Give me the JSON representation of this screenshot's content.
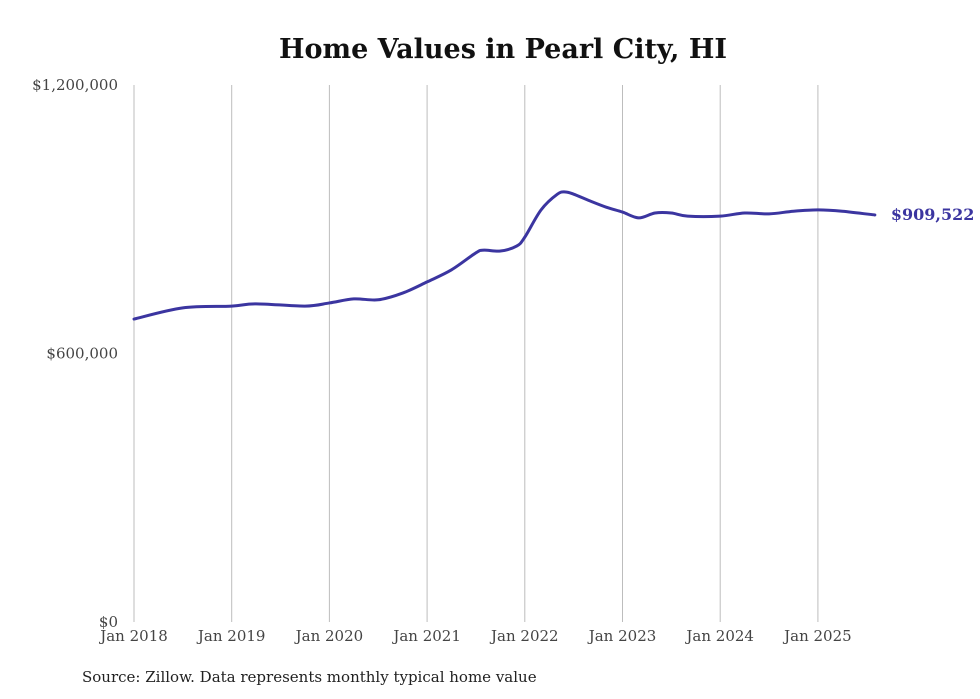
{
  "chart_data": {
    "type": "line",
    "title": "Home Values in Pearl City, HI",
    "xlabel": "",
    "ylabel": "",
    "ylim": [
      0,
      1200000
    ],
    "y_ticks": [
      0,
      600000,
      1200000
    ],
    "y_tick_labels": [
      "$0",
      "$600,000",
      "$1,200,000"
    ],
    "x_ticks": [
      "2018-01",
      "2019-01",
      "2020-01",
      "2021-01",
      "2022-01",
      "2023-01",
      "2024-01",
      "2025-01"
    ],
    "x_tick_labels": [
      "Jan 2018",
      "Jan 2019",
      "Jan 2020",
      "Jan 2021",
      "Jan 2022",
      "Jan 2023",
      "Jan 2024",
      "Jan 2025"
    ],
    "grid": "vertical",
    "color": "#3b35a0",
    "series": [
      {
        "name": "Typical home value",
        "x": [
          "2018-01",
          "2018-07",
          "2019-01",
          "2019-04",
          "2019-10",
          "2020-01",
          "2020-04",
          "2020-07",
          "2020-10",
          "2021-01",
          "2021-04",
          "2021-07",
          "2021-08",
          "2021-10",
          "2021-12",
          "2022-01",
          "2022-03",
          "2022-05",
          "2022-06",
          "2022-07",
          "2022-09",
          "2022-11",
          "2023-01",
          "2023-03",
          "2023-05",
          "2023-07",
          "2023-09",
          "2024-01",
          "2024-04",
          "2024-07",
          "2024-10",
          "2025-01",
          "2025-04",
          "2025-08"
        ],
        "values": [
          677000,
          702000,
          706000,
          711000,
          706000,
          713000,
          722000,
          720000,
          735000,
          760000,
          787000,
          825000,
          831000,
          829000,
          840000,
          860000,
          921000,
          956000,
          961000,
          956000,
          941000,
          927000,
          916000,
          903000,
          914000,
          914000,
          907000,
          907000,
          914000,
          912000,
          918000,
          921000,
          918000,
          909522
        ]
      }
    ],
    "end_label": "$909,522"
  },
  "source": "Source: Zillow. Data represents monthly typical home value"
}
